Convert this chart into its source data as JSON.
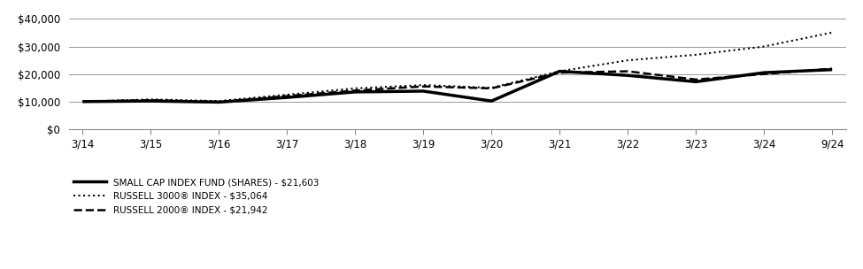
{
  "x_labels": [
    "3/14",
    "3/15",
    "3/16",
    "3/17",
    "3/18",
    "3/19",
    "3/20",
    "3/21",
    "3/22",
    "3/23",
    "3/24",
    "9/24"
  ],
  "x_values": [
    0,
    1,
    2,
    3,
    4,
    5,
    6,
    7,
    8,
    9,
    10,
    11
  ],
  "fund_shares": [
    10000,
    10200,
    9800,
    11500,
    13500,
    13800,
    10200,
    21000,
    19500,
    17200,
    20500,
    21603
  ],
  "russell3000": [
    10000,
    10800,
    10200,
    12500,
    14800,
    16000,
    15000,
    21000,
    25000,
    27000,
    30000,
    35064
  ],
  "russell2000": [
    10000,
    10500,
    9900,
    12000,
    14000,
    15500,
    14800,
    20500,
    21000,
    18000,
    20000,
    21942
  ],
  "fund_color": "#000000",
  "index3000_color": "#000000",
  "index2000_color": "#000000",
  "ylim": [
    0,
    42000
  ],
  "yticks": [
    0,
    10000,
    20000,
    30000,
    40000
  ],
  "ytick_labels": [
    "$0",
    "$10,000",
    "$20,000",
    "$30,000",
    "$40,000"
  ],
  "legend_fund": "SMALL CAP INDEX FUND (SHARES) - $21,603",
  "legend_3000": "RUSSELL 3000® INDEX - $35,064",
  "legend_2000": "RUSSELL 2000® INDEX - $21,942",
  "bg_color": "#ffffff",
  "grid_color": "#888888"
}
